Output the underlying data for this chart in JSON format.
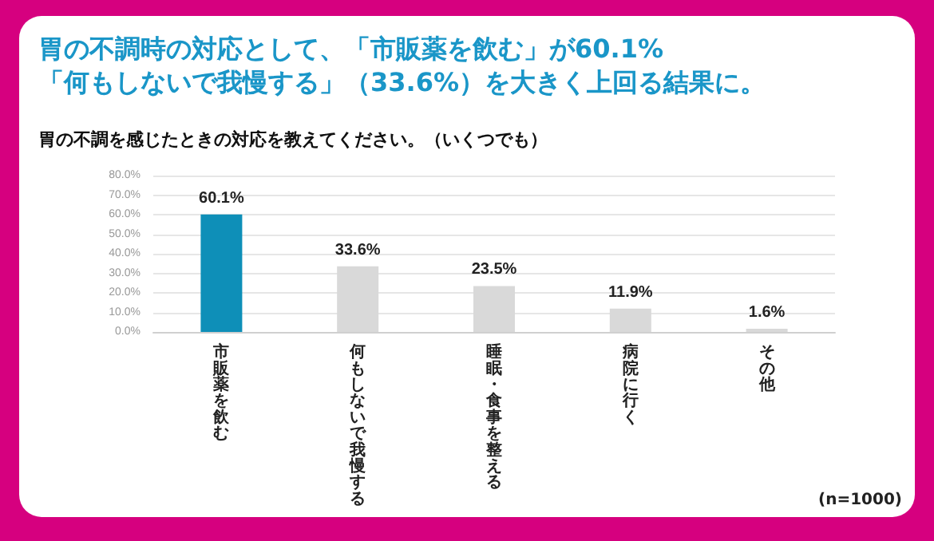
{
  "chart_data": {
    "type": "bar",
    "title": "胃の不調時の対応として、「市販薬を飲む」が60.1%\n「何もしないで我慢する」（33.6%）を大きく上回る結果に。",
    "subtitle": "胃の不調を感じたときの対応を教えてください。（いくつでも）",
    "categories": [
      "市販薬を飲む",
      "何もしないで我慢する",
      "睡眠・食事を整える",
      "病院に行く",
      "その他"
    ],
    "values": [
      60.1,
      33.6,
      23.5,
      11.9,
      1.6
    ],
    "colors": [
      "#0e8fb8",
      "#d9d9d9",
      "#d9d9d9",
      "#d9d9d9",
      "#d9d9d9"
    ],
    "value_labels": [
      "60.1%",
      "33.6%",
      "23.5%",
      "11.9%",
      "1.6%"
    ],
    "ylim": [
      0,
      80
    ],
    "yticks": [
      {
        "value": 0,
        "label": "0.0%"
      },
      {
        "value": 10,
        "label": "10.0%"
      },
      {
        "value": 20,
        "label": "20.0%"
      },
      {
        "value": 30,
        "label": "30.0%"
      },
      {
        "value": 40,
        "label": "40.0%"
      },
      {
        "value": 50,
        "label": "50.0%"
      },
      {
        "value": 60,
        "label": "60.0%"
      },
      {
        "value": 70,
        "label": "70.0%"
      },
      {
        "value": 80,
        "label": "80.0%"
      }
    ],
    "grid": "y",
    "annotations": [
      "(n=1000)"
    ]
  }
}
